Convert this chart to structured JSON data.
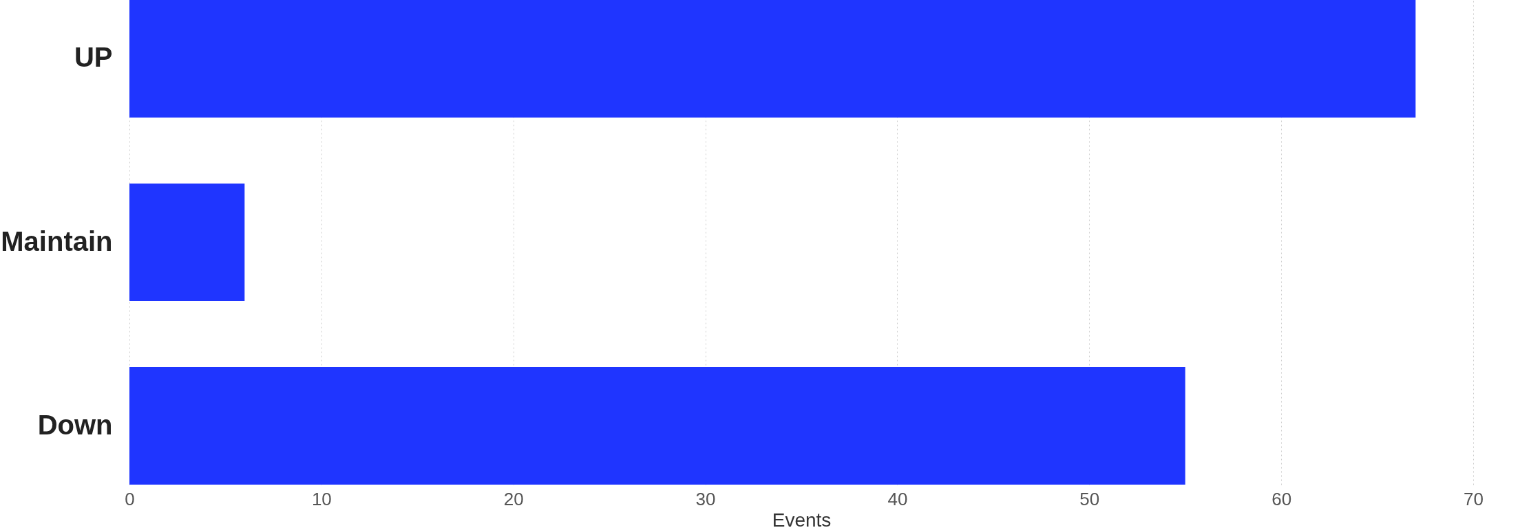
{
  "chart_data": {
    "type": "bar",
    "orientation": "horizontal",
    "xlabel": "Events",
    "categories": [
      "UP",
      "Maintain",
      "Down"
    ],
    "series": [
      {
        "color": "#1f35ff",
        "values": [
          67,
          6,
          55
        ]
      }
    ],
    "xlim": [
      0,
      70
    ],
    "xticks": [
      0,
      10,
      20,
      30,
      40,
      50,
      60,
      70
    ],
    "grid": "x",
    "legend": false
  }
}
